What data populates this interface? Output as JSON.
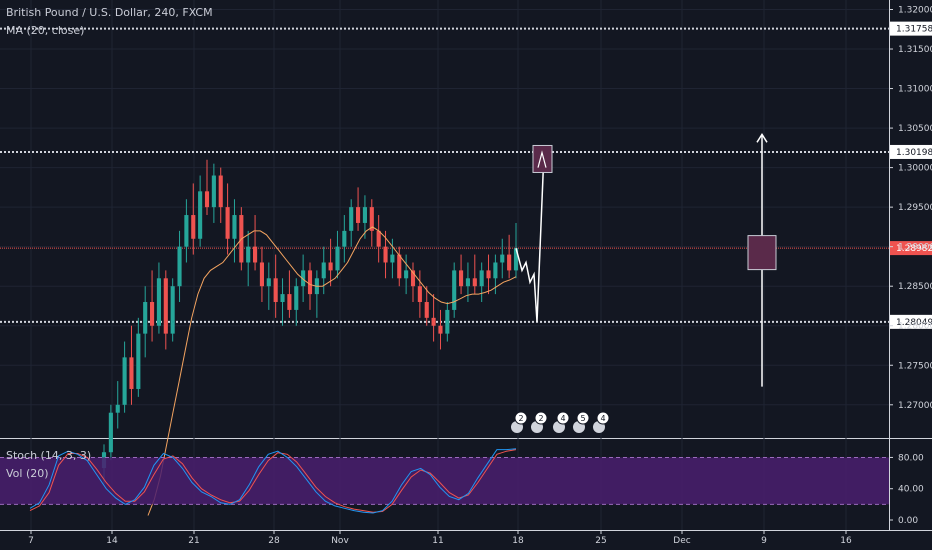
{
  "header": {
    "symbol": "British Pound / U.S. Dollar, 240, FXCM",
    "ma_label": "MA (20, close)",
    "stoch_label": "Stoch (14, 3, 3)",
    "vol_label": "Vol (20)"
  },
  "colors": {
    "background": "#131722",
    "up": "#26a69a",
    "down": "#ef5350",
    "ma": "#f4a460",
    "stoch_k": "#2196f3",
    "stoch_d": "#ef5350",
    "stoch_band": "#4a1f6e",
    "price_line": "#ef5350",
    "level": "#d1d4dc"
  },
  "chart_data": {
    "type": "candlestick",
    "price_axis": {
      "ticks": [
        "1.32000",
        "1.31500",
        "1.31000",
        "1.30500",
        "1.30000",
        "1.29500",
        "1.29000",
        "1.28500",
        "1.28000",
        "1.27500",
        "1.27000"
      ]
    },
    "stoch_axis": {
      "ticks": [
        "80.00",
        "40.00",
        "0.00"
      ]
    },
    "x_axis": {
      "ticks": [
        "7",
        "14",
        "21",
        "28",
        "Nov",
        "11",
        "18",
        "25",
        "Dec",
        "9",
        "16"
      ]
    },
    "levels": [
      {
        "label": "1.31758",
        "value": 1.31758,
        "style": "dotted"
      },
      {
        "label": "1.30198",
        "value": 1.30198,
        "style": "dotted"
      },
      {
        "label": "1.28049",
        "value": 1.28049,
        "style": "dotted"
      }
    ],
    "current_price": {
      "label": "1.28982",
      "value": 1.28982
    },
    "events": [
      "2",
      "2",
      "4",
      "5",
      "4"
    ],
    "candles": [
      [
        1.262,
        1.265,
        1.26,
        1.264
      ],
      [
        1.264,
        1.27,
        1.263,
        1.269
      ],
      [
        1.269,
        1.273,
        1.267,
        1.27
      ],
      [
        1.27,
        1.278,
        1.269,
        1.276
      ],
      [
        1.276,
        1.28,
        1.27,
        1.272
      ],
      [
        1.272,
        1.281,
        1.271,
        1.279
      ],
      [
        1.279,
        1.285,
        1.276,
        1.283
      ],
      [
        1.283,
        1.287,
        1.278,
        1.28
      ],
      [
        1.28,
        1.288,
        1.279,
        1.286
      ],
      [
        1.286,
        1.287,
        1.277,
        1.279
      ],
      [
        1.279,
        1.286,
        1.278,
        1.285
      ],
      [
        1.285,
        1.292,
        1.283,
        1.29
      ],
      [
        1.29,
        1.296,
        1.288,
        1.294
      ],
      [
        1.294,
        1.298,
        1.289,
        1.291
      ],
      [
        1.291,
        1.299,
        1.29,
        1.297
      ],
      [
        1.297,
        1.301,
        1.294,
        1.295
      ],
      [
        1.295,
        1.3005,
        1.293,
        1.299
      ],
      [
        1.299,
        1.3,
        1.293,
        1.295
      ],
      [
        1.295,
        1.298,
        1.289,
        1.291
      ],
      [
        1.291,
        1.296,
        1.288,
        1.294
      ],
      [
        1.294,
        1.295,
        1.287,
        1.288
      ],
      [
        1.288,
        1.292,
        1.285,
        1.29
      ],
      [
        1.29,
        1.294,
        1.287,
        1.288
      ],
      [
        1.288,
        1.29,
        1.283,
        1.285
      ],
      [
        1.285,
        1.288,
        1.282,
        1.286
      ],
      [
        1.286,
        1.289,
        1.281,
        1.283
      ],
      [
        1.283,
        1.286,
        1.28,
        1.284
      ],
      [
        1.284,
        1.287,
        1.281,
        1.282
      ],
      [
        1.282,
        1.286,
        1.28,
        1.285
      ],
      [
        1.285,
        1.289,
        1.283,
        1.287
      ],
      [
        1.287,
        1.288,
        1.282,
        1.284
      ],
      [
        1.284,
        1.287,
        1.281,
        1.286
      ],
      [
        1.286,
        1.29,
        1.284,
        1.288
      ],
      [
        1.288,
        1.291,
        1.285,
        1.287
      ],
      [
        1.287,
        1.292,
        1.286,
        1.29
      ],
      [
        1.29,
        1.294,
        1.288,
        1.292
      ],
      [
        1.292,
        1.296,
        1.29,
        1.295
      ],
      [
        1.295,
        1.2975,
        1.292,
        1.293
      ],
      [
        1.293,
        1.2965,
        1.291,
        1.295
      ],
      [
        1.295,
        1.296,
        1.29,
        1.292
      ],
      [
        1.292,
        1.294,
        1.288,
        1.29
      ],
      [
        1.29,
        1.292,
        1.286,
        1.288
      ],
      [
        1.288,
        1.291,
        1.286,
        1.289
      ],
      [
        1.289,
        1.29,
        1.285,
        1.286
      ],
      [
        1.286,
        1.289,
        1.284,
        1.287
      ],
      [
        1.287,
        1.288,
        1.283,
        1.285
      ],
      [
        1.285,
        1.287,
        1.281,
        1.283
      ],
      [
        1.283,
        1.285,
        1.28,
        1.281
      ],
      [
        1.281,
        1.284,
        1.278,
        1.28
      ],
      [
        1.28,
        1.282,
        1.277,
        1.279
      ],
      [
        1.279,
        1.283,
        1.278,
        1.282
      ],
      [
        1.282,
        1.288,
        1.281,
        1.287
      ],
      [
        1.287,
        1.289,
        1.284,
        1.285
      ],
      [
        1.285,
        1.288,
        1.283,
        1.286
      ],
      [
        1.286,
        1.289,
        1.284,
        1.285
      ],
      [
        1.285,
        1.288,
        1.283,
        1.287
      ],
      [
        1.287,
        1.289,
        1.284,
        1.286
      ],
      [
        1.286,
        1.289,
        1.284,
        1.288
      ],
      [
        1.288,
        1.291,
        1.286,
        1.289
      ],
      [
        1.289,
        1.2915,
        1.286,
        1.287
      ],
      [
        1.287,
        1.293,
        1.286,
        1.2898
      ]
    ],
    "ma": [
      1.256,
      1.258,
      1.261,
      1.265,
      1.269,
      1.273,
      1.277,
      1.281,
      1.284,
      1.286,
      1.287,
      1.2875,
      1.288,
      1.289,
      1.29,
      1.291,
      1.2915,
      1.292,
      1.292,
      1.2915,
      1.2905,
      1.2895,
      1.2885,
      1.2875,
      1.2865,
      1.2858,
      1.2852,
      1.285,
      1.285,
      1.2855,
      1.286,
      1.287,
      1.288,
      1.2895,
      1.291,
      1.292,
      1.2925,
      1.292,
      1.2912,
      1.2902,
      1.2892,
      1.2882,
      1.2872,
      1.2862,
      1.2852,
      1.2842,
      1.2835,
      1.283,
      1.2828,
      1.283,
      1.2834,
      1.2838,
      1.284,
      1.284,
      1.2842,
      1.2845,
      1.285,
      1.2855,
      1.2858,
      1.2862
    ],
    "stoch_k": [
      15,
      22,
      45,
      82,
      88,
      84,
      76,
      58,
      40,
      28,
      20,
      26,
      42,
      70,
      85,
      80,
      66,
      48,
      36,
      30,
      22,
      20,
      26,
      45,
      68,
      84,
      88,
      80,
      68,
      52,
      36,
      24,
      18,
      15,
      12,
      10,
      9,
      12,
      24,
      45,
      62,
      66,
      58,
      42,
      30,
      26,
      34,
      54,
      72,
      90,
      90,
      91
    ],
    "stoch_d": [
      12,
      18,
      35,
      70,
      85,
      85,
      80,
      65,
      48,
      34,
      24,
      24,
      36,
      58,
      78,
      82,
      72,
      54,
      40,
      32,
      26,
      22,
      24,
      38,
      58,
      76,
      86,
      84,
      74,
      58,
      42,
      30,
      22,
      17,
      14,
      12,
      10,
      11,
      20,
      38,
      55,
      64,
      60,
      48,
      35,
      28,
      32,
      48,
      66,
      84,
      88,
      90
    ]
  }
}
